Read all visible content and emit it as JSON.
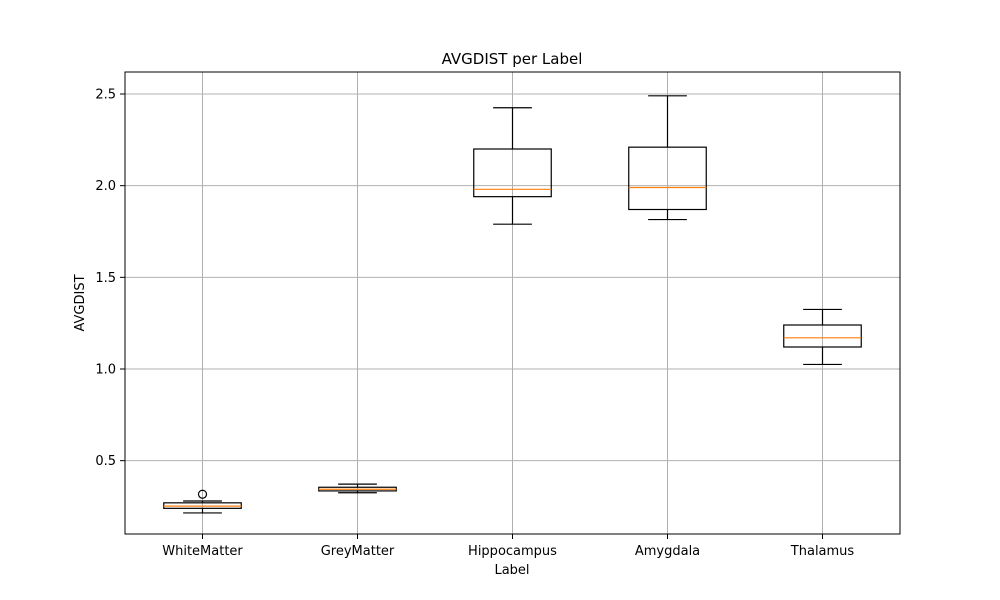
{
  "chart_data": {
    "type": "boxplot",
    "title": "AVGDIST per Label",
    "xlabel": "Label",
    "ylabel": "AVGDIST",
    "ylim": [
      0.1,
      2.62
    ],
    "yticks": [
      0.5,
      1.0,
      1.5,
      2.0,
      2.5
    ],
    "ytick_labels": [
      "0.5",
      "1.0",
      "1.5",
      "2.0",
      "2.5"
    ],
    "grid": true,
    "colors": {
      "box": "#000000",
      "median": "#ff7f0e",
      "grid": "#b0b0b0"
    },
    "categories": [
      "WhiteMatter",
      "GreyMatter",
      "Hippocampus",
      "Amygdala",
      "Thalamus"
    ],
    "boxes": [
      {
        "label": "WhiteMatter",
        "whisker_low": 0.215,
        "q1": 0.24,
        "median": 0.252,
        "q3": 0.27,
        "whisker_high": 0.28,
        "outliers": [
          0.317
        ]
      },
      {
        "label": "GreyMatter",
        "whisker_low": 0.325,
        "q1": 0.335,
        "median": 0.344,
        "q3": 0.355,
        "whisker_high": 0.372,
        "outliers": []
      },
      {
        "label": "Hippocampus",
        "whisker_low": 1.79,
        "q1": 1.94,
        "median": 1.98,
        "q3": 2.2,
        "whisker_high": 2.425,
        "outliers": []
      },
      {
        "label": "Amygdala",
        "whisker_low": 1.815,
        "q1": 1.87,
        "median": 1.99,
        "q3": 2.21,
        "whisker_high": 2.49,
        "outliers": []
      },
      {
        "label": "Thalamus",
        "whisker_low": 1.025,
        "q1": 1.12,
        "median": 1.17,
        "q3": 1.24,
        "whisker_high": 1.325,
        "outliers": []
      }
    ]
  }
}
